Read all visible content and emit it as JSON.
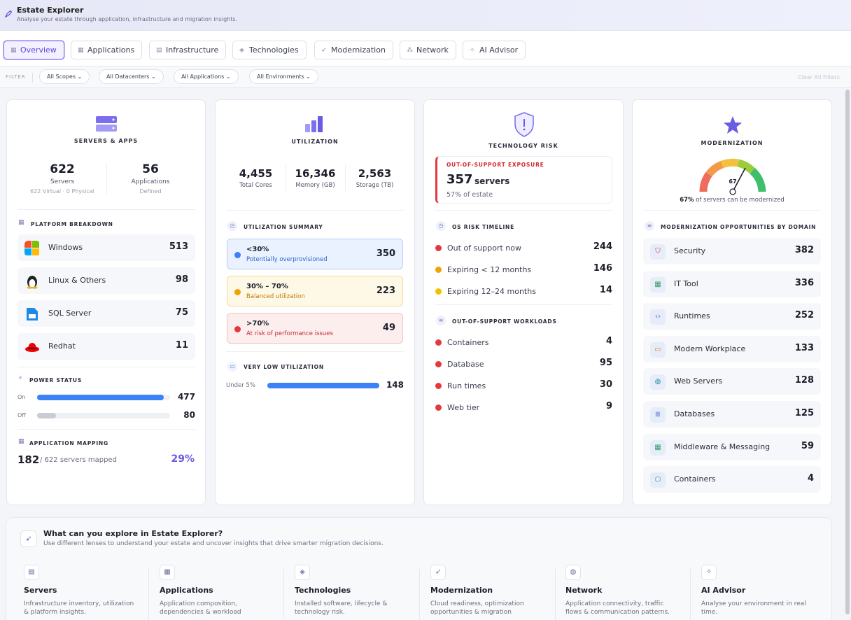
{
  "header": {
    "title": "Estate Explorer",
    "subtitle": "Analyse your estate through application, infrastructure and migration insights."
  },
  "tabs": [
    {
      "label": "Overview",
      "icon": "grid-icon"
    },
    {
      "label": "Applications",
      "icon": "grid-icon"
    },
    {
      "label": "Infrastructure",
      "icon": "server-icon"
    },
    {
      "label": "Technologies",
      "icon": "layers-icon"
    },
    {
      "label": "Modernization",
      "icon": "rocket-icon"
    },
    {
      "label": "Network",
      "icon": "network-icon"
    },
    {
      "label": "AI Advisor",
      "icon": "sparkle-icon"
    }
  ],
  "filter": {
    "label": "FILTER",
    "dropdowns": [
      "All Scopes",
      "All Datacenters",
      "All Applications",
      "All Environments"
    ],
    "clear": "Clear All Filters"
  },
  "servers": {
    "title": "SERVERS & APPS",
    "servers_value": "622",
    "servers_label": "Servers",
    "servers_sub": "622 Virtual · 0 Physical",
    "apps_value": "56",
    "apps_label": "Applications",
    "apps_sub": "Defined",
    "platform_title": "PLATFORM BREAKDOWN",
    "platforms": [
      {
        "name": "Windows",
        "value": "513"
      },
      {
        "name": "Linux & Others",
        "value": "98"
      },
      {
        "name": "SQL Server",
        "value": "75"
      },
      {
        "name": "Redhat",
        "value": "11"
      }
    ],
    "power_title": "POWER STATUS",
    "power": [
      {
        "label": "On",
        "value": "477",
        "fraction": 0.95
      },
      {
        "label": "Off",
        "value": "80",
        "fraction": 0.14
      }
    ],
    "mapping_title": "APPLICATION MAPPING",
    "mapped": "182",
    "mapped_text": "/ 622 servers mapped",
    "mapped_pct": "29%"
  },
  "utilization": {
    "title": "UTILIZATION",
    "stats": [
      {
        "value": "4,455",
        "label": "Total Cores"
      },
      {
        "value": "16,346",
        "label": "Memory (GB)"
      },
      {
        "value": "2,563",
        "label": "Storage (TB)"
      }
    ],
    "summary_title": "UTILIZATION SUMMARY",
    "buckets": [
      {
        "range": "<30%",
        "desc": "Potentially overprovisioned",
        "value": "350"
      },
      {
        "range": "30% – 70%",
        "desc": "Balanced utilization",
        "value": "223"
      },
      {
        "range": ">70%",
        "desc": "At risk of performance issues",
        "value": "49"
      }
    ],
    "low_title": "VERY LOW UTILIZATION",
    "low_label": "Under 5%",
    "low_value": "148",
    "low_fraction": 1.0
  },
  "risk": {
    "title": "TECHNOLOGY RISK",
    "exposure_title": "OUT-OF-SUPPORT EXPOSURE",
    "exposure_value": "357",
    "exposure_unit": "servers",
    "exposure_sub": "57% of estate",
    "timeline_title": "OS RISK TIMELINE",
    "timeline": [
      {
        "label": "Out of support now",
        "value": "244",
        "color": "#e5383b"
      },
      {
        "label": "Expiring < 12 months",
        "value": "146",
        "color": "#f0a202"
      },
      {
        "label": "Expiring 12–24 months",
        "value": "14",
        "color": "#f0c000"
      }
    ],
    "workloads_title": "OUT-OF-SUPPORT WORKLOADS",
    "workloads": [
      {
        "label": "Containers",
        "value": "4"
      },
      {
        "label": "Database",
        "value": "95"
      },
      {
        "label": "Run times",
        "value": "30"
      },
      {
        "label": "Web tier",
        "value": "9"
      }
    ]
  },
  "modernization": {
    "title": "MODERNIZATION",
    "gauge_value": "67",
    "gauge_pct": "67%",
    "gauge_text": "of servers can be modernized",
    "domain_title": "MODERNIZATION OPPORTUNITIES BY DOMAIN",
    "domains": [
      {
        "name": "Security",
        "value": "382",
        "icon": "shield-icon"
      },
      {
        "name": "IT Tool",
        "value": "336",
        "icon": "grid-icon"
      },
      {
        "name": "Runtimes",
        "value": "252",
        "icon": "code-icon"
      },
      {
        "name": "Modern Workplace",
        "value": "133",
        "icon": "monitor-icon"
      },
      {
        "name": "Web Servers",
        "value": "128",
        "icon": "globe-icon"
      },
      {
        "name": "Databases",
        "value": "125",
        "icon": "database-icon"
      },
      {
        "name": "Middleware & Messaging",
        "value": "59",
        "icon": "grid-icon"
      },
      {
        "name": "Containers",
        "value": "4",
        "icon": "box-icon"
      }
    ]
  },
  "explore": {
    "title": "What can you explore in Estate Explorer?",
    "subtitle": "Use different lenses to understand your estate and uncover insights that drive smarter migration decisions.",
    "items": [
      {
        "title": "Servers",
        "desc": "Infrastructure inventory, utilization & platform insights.",
        "icon": "server-icon"
      },
      {
        "title": "Applications",
        "desc": "Application composition, dependencies & workload",
        "icon": "grid-icon"
      },
      {
        "title": "Technologies",
        "desc": "Installed software, lifecycle & technology risk.",
        "icon": "layers-icon"
      },
      {
        "title": "Modernization",
        "desc": "Cloud readiness, optimization opportunities & migration",
        "icon": "rocket-icon"
      },
      {
        "title": "Network",
        "desc": "Application connectivity, traffic flows & communication patterns.",
        "icon": "globe-icon"
      },
      {
        "title": "AI Advisor",
        "desc": "Analyse your environment in real time.",
        "icon": "sparkle-icon"
      }
    ]
  }
}
